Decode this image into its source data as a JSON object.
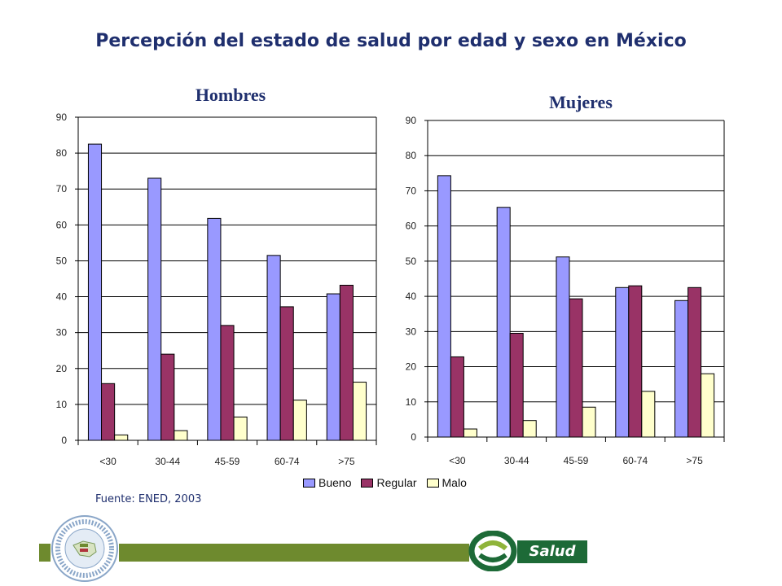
{
  "title": "Percepción del estado de salud por edad y sexo en México",
  "source": "Fuente: ENED, 2003",
  "brand": {
    "salud_label": "Salud",
    "color": "#1d6a37",
    "bar_color": "#6e8a2e",
    "logo_left_icon": "cemece-seal-icon",
    "logo_right_icon": "salud-swirl-icon"
  },
  "colors": {
    "bueno": "#9999ff",
    "regular": "#993366",
    "malo": "#ffffcc"
  },
  "legend": [
    {
      "label": "Bueno",
      "color": "#9999ff"
    },
    {
      "label": "Regular",
      "color": "#993366"
    },
    {
      "label": "Malo",
      "color": "#ffffcc"
    }
  ],
  "chart_data": [
    {
      "type": "bar",
      "title": "Hombres",
      "categories": [
        "<30",
        "30-44",
        "45-59",
        "60-74",
        ">75"
      ],
      "ylim": [
        0,
        90
      ],
      "yticks": [
        0,
        10,
        20,
        30,
        40,
        50,
        60,
        70,
        80,
        90
      ],
      "grid": true,
      "series": [
        {
          "name": "Bueno",
          "values": [
            82.5,
            73,
            61.8,
            51.5,
            40.8
          ]
        },
        {
          "name": "Regular",
          "values": [
            15.8,
            24,
            32,
            37.2,
            43.2
          ]
        },
        {
          "name": "Malo",
          "values": [
            1.5,
            2.7,
            6.5,
            11.2,
            16.2
          ]
        }
      ]
    },
    {
      "type": "bar",
      "title": "Mujeres",
      "categories": [
        "<30",
        "30-44",
        "45-59",
        "60-74",
        ">75"
      ],
      "ylim": [
        0,
        90
      ],
      "yticks": [
        0,
        10,
        20,
        30,
        40,
        50,
        60,
        70,
        80,
        90
      ],
      "grid": true,
      "series": [
        {
          "name": "Bueno",
          "values": [
            74.3,
            65.3,
            51.2,
            42.5,
            38.8
          ]
        },
        {
          "name": "Regular",
          "values": [
            22.8,
            29.5,
            39.3,
            43,
            42.5
          ]
        },
        {
          "name": "Malo",
          "values": [
            2.3,
            4.7,
            8.5,
            13,
            18
          ]
        }
      ]
    }
  ]
}
